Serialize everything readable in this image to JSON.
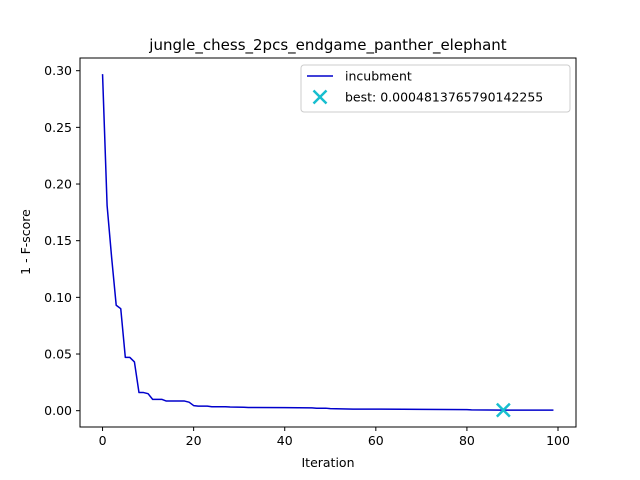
{
  "chart_data": {
    "type": "line",
    "title": "jungle_chess_2pcs_endgame_panther_elephant",
    "xlabel": "Iteration",
    "ylabel": "1 - F-score",
    "xlim": [
      -4.95,
      103.95
    ],
    "ylim": [
      -0.0144,
      0.3112
    ],
    "xticks": [
      0,
      20,
      40,
      60,
      80,
      100
    ],
    "yticks": [
      0.0,
      0.05,
      0.1,
      0.15,
      0.2,
      0.25,
      0.3
    ],
    "ytick_labels": [
      "0.00",
      "0.05",
      "0.10",
      "0.15",
      "0.20",
      "0.25",
      "0.30"
    ],
    "grid": false,
    "legend_position": "top-right",
    "colors": {
      "incumbent": "#0000cc",
      "best": "#17becf"
    },
    "series": [
      {
        "name": "incubment",
        "kind": "step-line",
        "points": [
          [
            0,
            0.297
          ],
          [
            1,
            0.181
          ],
          [
            2,
            0.135
          ],
          [
            3,
            0.093
          ],
          [
            4,
            0.09
          ],
          [
            5,
            0.047
          ],
          [
            6,
            0.047
          ],
          [
            7,
            0.043
          ],
          [
            8,
            0.016
          ],
          [
            9,
            0.016
          ],
          [
            10,
            0.015
          ],
          [
            11,
            0.01
          ],
          [
            12,
            0.01
          ],
          [
            13,
            0.01
          ],
          [
            14,
            0.0085
          ],
          [
            18,
            0.0085
          ],
          [
            19,
            0.0075
          ],
          [
            20,
            0.0045
          ],
          [
            21,
            0.004
          ],
          [
            23,
            0.004
          ],
          [
            24,
            0.0035
          ],
          [
            27,
            0.0035
          ],
          [
            28,
            0.0032
          ],
          [
            31,
            0.003
          ],
          [
            32,
            0.0028
          ],
          [
            40,
            0.0027
          ],
          [
            46,
            0.0025
          ],
          [
            47,
            0.0022
          ],
          [
            49,
            0.0022
          ],
          [
            50,
            0.0018
          ],
          [
            55,
            0.0014
          ],
          [
            66,
            0.0013
          ],
          [
            70,
            0.0011
          ],
          [
            80,
            0.0009
          ],
          [
            81,
            0.0007
          ],
          [
            88,
            0.0005
          ],
          [
            99,
            0.0005
          ]
        ]
      }
    ],
    "best": {
      "label": "best: 0.0004813765790142255",
      "x": 88,
      "y": 0.0004813765790142255
    },
    "legend": [
      {
        "label": "incubment",
        "marker": "line"
      },
      {
        "label": "best: 0.0004813765790142255",
        "marker": "x"
      }
    ]
  }
}
